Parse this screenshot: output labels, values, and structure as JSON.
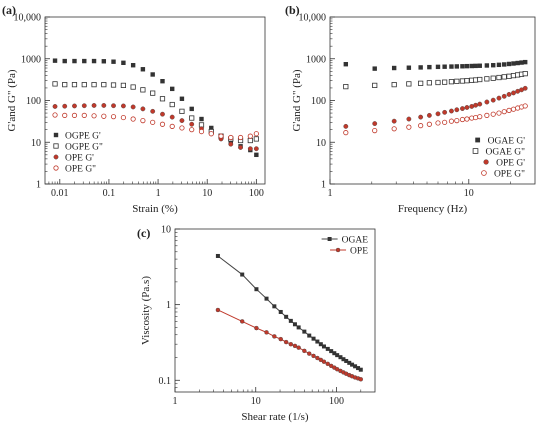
{
  "chart_data": [
    {
      "panel": "(a)",
      "type": "scatter",
      "title": "",
      "xlabel": "Strain (%)",
      "ylabel": "G'and G\" (Pa)",
      "xscale": "log",
      "yscale": "log",
      "xlim": [
        0.005,
        150
      ],
      "ylim": [
        1,
        10000
      ],
      "xticks": [
        0.01,
        0.1,
        1,
        10,
        100
      ],
      "xtick_labels": [
        "0.01",
        "0.1",
        "1",
        "10",
        "100"
      ],
      "yticks": [
        1,
        10,
        100,
        1000,
        10000
      ],
      "ytick_labels": [
        "1",
        "10",
        "100",
        "1000",
        "10,000"
      ],
      "legend_position": "bottom-left",
      "series": [
        {
          "name": "OGPE G'",
          "marker": "filled-square",
          "color": "#333333",
          "x": [
            0.008,
            0.0126,
            0.0199,
            0.0315,
            0.0498,
            0.0787,
            0.124,
            0.197,
            0.311,
            0.491,
            0.777,
            1.23,
            1.94,
            3.06,
            4.84,
            7.65,
            12.1,
            19.1,
            30.2,
            47.7,
            75.4,
            100
          ],
          "y": [
            900,
            880,
            880,
            880,
            880,
            870,
            850,
            800,
            700,
            560,
            420,
            290,
            190,
            110,
            63,
            36,
            22,
            14,
            10,
            8,
            6.5,
            5
          ]
        },
        {
          "name": "OGPE G\"",
          "marker": "open-square",
          "color": "#333333",
          "x": [
            0.008,
            0.0126,
            0.0199,
            0.0315,
            0.0498,
            0.0787,
            0.124,
            0.197,
            0.311,
            0.491,
            0.777,
            1.23,
            1.94,
            3.06,
            4.84,
            7.65,
            12.1,
            19.1,
            30.2,
            47.7,
            75.4,
            100
          ],
          "y": [
            250,
            240,
            240,
            240,
            240,
            240,
            235,
            230,
            210,
            180,
            150,
            110,
            80,
            55,
            38,
            26,
            18,
            14,
            12,
            11,
            11,
            12
          ]
        },
        {
          "name": "OPE G'",
          "marker": "filled-circle",
          "color": "#c0392b",
          "x": [
            0.008,
            0.0126,
            0.0199,
            0.0315,
            0.0498,
            0.0787,
            0.124,
            0.197,
            0.311,
            0.491,
            0.777,
            1.23,
            1.94,
            3.06,
            4.84,
            7.65,
            12.1,
            19.1,
            30.2,
            47.7,
            75.4,
            100
          ],
          "y": [
            72,
            73,
            74,
            75,
            76,
            76,
            75,
            74,
            70,
            63,
            55,
            47,
            40,
            33,
            27,
            21,
            16,
            12,
            9,
            7.5,
            7,
            7
          ]
        },
        {
          "name": "OPE G\"",
          "marker": "open-circle",
          "color": "#c0392b",
          "x": [
            0.008,
            0.0126,
            0.0199,
            0.0315,
            0.0498,
            0.0787,
            0.124,
            0.197,
            0.311,
            0.491,
            0.777,
            1.23,
            1.94,
            3.06,
            4.84,
            7.65,
            12.1,
            19.1,
            30.2,
            47.7,
            75.4,
            100
          ],
          "y": [
            45,
            44,
            44,
            44,
            43,
            42,
            41,
            39,
            36,
            33,
            30,
            27,
            24,
            22,
            20,
            18,
            16,
            14,
            13,
            13,
            14,
            16
          ]
        }
      ]
    },
    {
      "panel": "(b)",
      "type": "scatter",
      "title": "",
      "xlabel": "Frequency (Hz)",
      "ylabel": "G'and G\" (Pa)",
      "xscale": "log",
      "yscale": "log",
      "xlim": [
        1,
        30
      ],
      "ylim": [
        1,
        10000
      ],
      "xticks": [
        1,
        10
      ],
      "xtick_labels": [
        "1",
        "10"
      ],
      "yticks": [
        1,
        10,
        100,
        1000,
        10000
      ],
      "ytick_labels": [
        "1",
        "10",
        "100",
        "1000",
        "10,000"
      ],
      "legend_position": "bottom-right",
      "series": [
        {
          "name": "OGAE G'",
          "marker": "filled-square",
          "color": "#333333",
          "x": [
            1.3,
            2.1,
            2.9,
            3.7,
            4.5,
            5.2,
            6.0,
            6.7,
            7.5,
            8.2,
            9.0,
            9.7,
            10.5,
            11.2,
            12.0,
            13.5,
            15.0,
            16.5,
            18.0,
            19.5,
            21.0,
            22.5,
            24.0,
            25.5
          ],
          "y": [
            740,
            580,
            600,
            610,
            620,
            630,
            640,
            645,
            650,
            655,
            660,
            665,
            670,
            675,
            680,
            690,
            700,
            715,
            730,
            750,
            770,
            790,
            810,
            830
          ]
        },
        {
          "name": "OGAE G\"",
          "marker": "open-square",
          "color": "#333333",
          "x": [
            1.3,
            2.1,
            2.9,
            3.7,
            4.5,
            5.2,
            6.0,
            6.7,
            7.5,
            8.2,
            9.0,
            9.7,
            10.5,
            11.2,
            12.0,
            13.5,
            15.0,
            16.5,
            18.0,
            19.5,
            21.0,
            22.5,
            24.0,
            25.5
          ],
          "y": [
            215,
            230,
            240,
            250,
            258,
            265,
            270,
            275,
            282,
            288,
            293,
            298,
            305,
            310,
            318,
            330,
            342,
            355,
            368,
            380,
            395,
            410,
            425,
            440
          ]
        },
        {
          "name": "OPE G'",
          "marker": "filled-circle",
          "color": "#c0392b",
          "x": [
            1.3,
            2.1,
            2.9,
            3.7,
            4.5,
            5.2,
            6.0,
            6.7,
            7.5,
            8.2,
            9.0,
            9.7,
            10.5,
            11.2,
            12.0,
            13.5,
            15.0,
            16.5,
            18.0,
            19.5,
            21.0,
            22.5,
            24.0,
            25.5
          ],
          "y": [
            24,
            28,
            32,
            36,
            40,
            44,
            48,
            52,
            56,
            60,
            64,
            68,
            72,
            77,
            82,
            92,
            102,
            114,
            126,
            140,
            152,
            166,
            180,
            196
          ]
        },
        {
          "name": "OPE G\"",
          "marker": "open-circle",
          "color": "#c0392b",
          "x": [
            1.3,
            2.1,
            2.9,
            3.7,
            4.5,
            5.2,
            6.0,
            6.7,
            7.5,
            8.2,
            9.0,
            9.7,
            10.5,
            11.2,
            12.0,
            13.5,
            15.0,
            16.5,
            18.0,
            19.5,
            21.0,
            22.5,
            24.0,
            25.5
          ],
          "y": [
            17,
            19,
            21,
            23,
            25,
            27,
            29,
            30,
            32,
            33,
            35,
            36,
            38,
            39,
            41,
            44,
            47,
            50,
            54,
            58,
            62,
            66,
            70,
            74
          ]
        }
      ]
    },
    {
      "panel": "(c)",
      "type": "line",
      "title": "",
      "xlabel": "Shear rate (1/s)",
      "ylabel": "Viscosity (Pa.s)",
      "xscale": "log",
      "yscale": "log",
      "xlim": [
        1,
        300
      ],
      "ylim": [
        0.07,
        10
      ],
      "xticks": [
        1,
        10,
        100
      ],
      "xtick_labels": [
        "1",
        "10",
        "100"
      ],
      "yticks": [
        0.1,
        1,
        10
      ],
      "ytick_labels": [
        "0.1",
        "1",
        "10"
      ],
      "legend_position": "top-right",
      "series": [
        {
          "name": "OGAE",
          "marker": "filled-square",
          "color": "#333333",
          "x": [
            3.4,
            6.8,
            10.2,
            13.6,
            17,
            20.4,
            23.8,
            27.2,
            30.6,
            34,
            40,
            46,
            52,
            58,
            64,
            70,
            78,
            86,
            94,
            102,
            112,
            122,
            132,
            144,
            156,
            170,
            185,
            200
          ],
          "y": [
            4.4,
            2.5,
            1.6,
            1.2,
            0.95,
            0.8,
            0.69,
            0.61,
            0.55,
            0.5,
            0.44,
            0.39,
            0.355,
            0.325,
            0.3,
            0.28,
            0.26,
            0.243,
            0.228,
            0.215,
            0.202,
            0.19,
            0.18,
            0.17,
            0.161,
            0.153,
            0.145,
            0.138
          ]
        },
        {
          "name": "OPE",
          "marker": "filled-circle",
          "color": "#c0392b",
          "x": [
            3.4,
            6.8,
            10.2,
            13.6,
            17,
            20.4,
            23.8,
            27.2,
            30.6,
            34,
            40,
            46,
            52,
            58,
            64,
            70,
            78,
            86,
            94,
            102,
            112,
            122,
            132,
            144,
            156,
            170,
            185,
            200
          ],
          "y": [
            0.85,
            0.6,
            0.49,
            0.43,
            0.38,
            0.35,
            0.32,
            0.3,
            0.285,
            0.27,
            0.245,
            0.225,
            0.21,
            0.197,
            0.186,
            0.176,
            0.165,
            0.155,
            0.147,
            0.14,
            0.133,
            0.127,
            0.122,
            0.117,
            0.113,
            0.109,
            0.106,
            0.103
          ]
        }
      ]
    }
  ]
}
